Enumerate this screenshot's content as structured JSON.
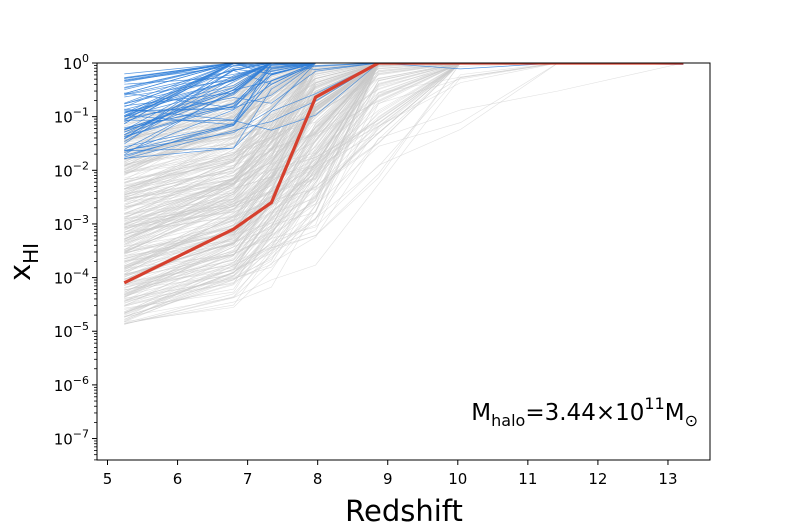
{
  "chart_data": {
    "type": "line",
    "title": "",
    "xlabel": "Redshift",
    "ylabel_base": "x",
    "ylabel_sub": "HI",
    "xlim": [
      4.85,
      13.6
    ],
    "ylim_log10": [
      -7.4,
      0
    ],
    "y_scale": "log",
    "x_ticks": [
      5,
      6,
      7,
      8,
      9,
      10,
      11,
      12,
      13
    ],
    "x_tick_labels": [
      "5",
      "6",
      "7",
      "8",
      "9",
      "10",
      "11",
      "12",
      "13"
    ],
    "y_ticks_exponent": [
      0,
      -1,
      -2,
      -3,
      -4,
      -5,
      -6,
      -7
    ],
    "y_tick_base": "10",
    "y_tick_exp_labels": [
      "0",
      "−1",
      "−2",
      "−3",
      "−4",
      "−5",
      "−6",
      "−7"
    ],
    "annotation": {
      "prefix": "M",
      "prefix_sub": "halo",
      "mid": "=3.44×10",
      "mid_sup": "11",
      "suffix": "M",
      "suffix_sub": "⊙"
    },
    "redshift_grid": [
      5.24,
      6.8,
      7.34,
      7.97,
      8.87,
      10.04,
      11.43,
      13.22
    ],
    "main_track": {
      "color": "#d6402e",
      "x": [
        5.24,
        6.8,
        7.34,
        7.97,
        8.87,
        10.04,
        11.43,
        13.22
      ],
      "y": [
        8e-05,
        0.0008,
        0.0025,
        0.23,
        1.0,
        1.0,
        1.0,
        1.0
      ]
    },
    "ensemble": {
      "gray_count": 380,
      "blue_count": 70,
      "gray_color": "#c8c8c8",
      "blue_color": "#2f7ed8",
      "gray_log10_range_at_z5": [
        -4.9,
        -1.0
      ],
      "blue_log10_range_at_z5": [
        -1.8,
        -0.2
      ]
    }
  }
}
